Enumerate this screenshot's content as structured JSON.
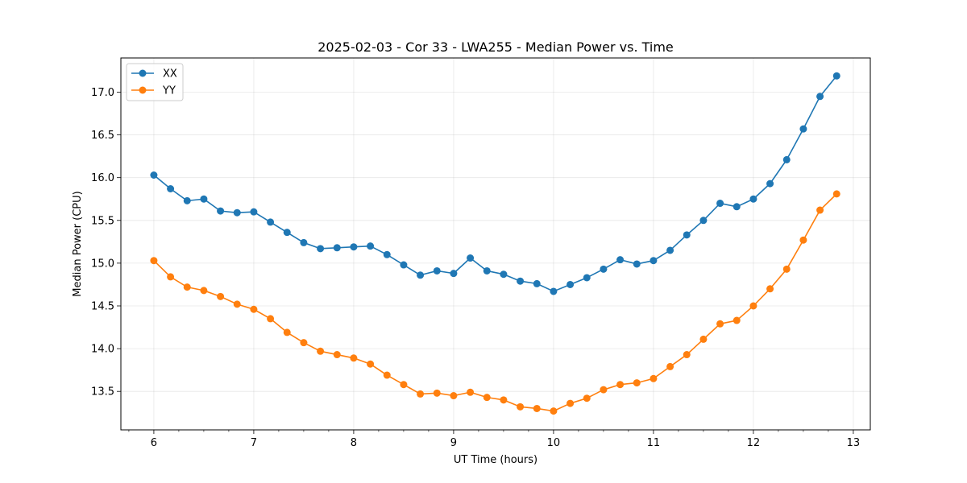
{
  "chart_data": {
    "type": "line",
    "title": "2025-02-03 - Cor 33 - LWA255 - Median Power vs. Time",
    "xlabel": "UT Time (hours)",
    "ylabel": "Median Power (CPU)",
    "xlim": [
      5.67,
      13.17
    ],
    "ylim": [
      13.05,
      17.4
    ],
    "xticks": [
      6,
      7,
      8,
      9,
      10,
      11,
      12,
      13
    ],
    "yticks": [
      13.5,
      14.0,
      14.5,
      15.0,
      15.5,
      16.0,
      16.5,
      17.0
    ],
    "ytick_labels": [
      "13.5",
      "14.0",
      "14.5",
      "15.0",
      "15.5",
      "16.0",
      "16.5",
      "17.0"
    ],
    "grid": true,
    "legend_position": "top-left",
    "x": [
      6.0,
      6.1667,
      6.3333,
      6.5,
      6.6667,
      6.8333,
      7.0,
      7.1667,
      7.3333,
      7.5,
      7.6667,
      7.8333,
      8.0,
      8.1667,
      8.3333,
      8.5,
      8.6667,
      8.8333,
      9.0,
      9.1667,
      9.3333,
      9.5,
      9.6667,
      9.8333,
      10.0,
      10.1667,
      10.3333,
      10.5,
      10.6667,
      10.8333,
      11.0,
      11.1667,
      11.3333,
      11.5,
      11.6667,
      11.8333,
      12.0,
      12.1667,
      12.3333,
      12.5,
      12.6667,
      12.8333
    ],
    "series": [
      {
        "name": "XX",
        "color": "#1f77b4",
        "values": [
          16.03,
          15.87,
          15.73,
          15.75,
          15.61,
          15.59,
          15.6,
          15.48,
          15.36,
          15.24,
          15.17,
          15.18,
          15.19,
          15.2,
          15.1,
          14.98,
          14.86,
          14.91,
          14.88,
          15.06,
          14.91,
          14.87,
          14.79,
          14.76,
          14.67,
          14.75,
          14.83,
          14.93,
          15.04,
          14.99,
          15.03,
          15.15,
          15.33,
          15.5,
          15.7,
          15.66,
          15.75,
          15.93,
          16.21,
          16.57,
          16.95,
          17.19
        ]
      },
      {
        "name": "YY",
        "color": "#ff7f0e",
        "values": [
          15.03,
          14.84,
          14.72,
          14.68,
          14.61,
          14.52,
          14.46,
          14.35,
          14.19,
          14.07,
          13.97,
          13.93,
          13.89,
          13.82,
          13.69,
          13.58,
          13.47,
          13.48,
          13.45,
          13.49,
          13.43,
          13.4,
          13.32,
          13.3,
          13.27,
          13.36,
          13.42,
          13.52,
          13.58,
          13.6,
          13.65,
          13.79,
          13.93,
          14.11,
          14.29,
          14.33,
          14.5,
          14.7,
          14.93,
          15.27,
          15.62,
          15.81
        ]
      }
    ]
  }
}
